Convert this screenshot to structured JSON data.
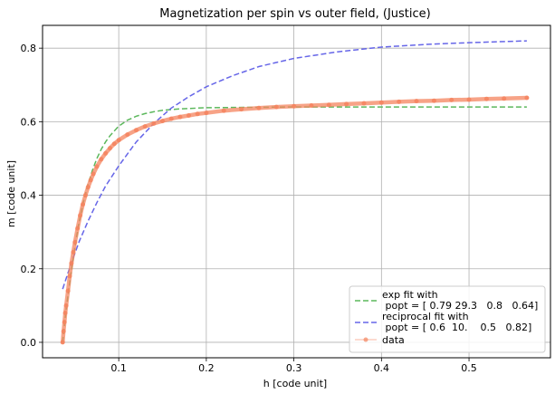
{
  "chart_data": {
    "type": "line",
    "title": "Magnetization per spin vs outer field, (Justice)",
    "xlabel": "h [code unit]",
    "ylabel": "m [code unit]",
    "xlim": [
      0.013,
      0.593
    ],
    "ylim": [
      -0.042,
      0.862
    ],
    "xticks": [
      0.1,
      0.2,
      0.3,
      0.4,
      0.5
    ],
    "xtick_labels": [
      "0.1",
      "0.2",
      "0.3",
      "0.4",
      "0.5"
    ],
    "yticks": [
      0.0,
      0.2,
      0.4,
      0.6,
      0.8
    ],
    "ytick_labels": [
      "0.0",
      "0.2",
      "0.4",
      "0.6",
      "0.8"
    ],
    "grid": true,
    "legend_position": "lower-right",
    "series": [
      {
        "name": "exp fit with\n popt = [ 0.79 29.3   0.8   0.64]",
        "style": "dashed",
        "color": "#5cb85c",
        "x": [
          0.036,
          0.04,
          0.045,
          0.05,
          0.055,
          0.06,
          0.065,
          0.07,
          0.075,
          0.08,
          0.085,
          0.09,
          0.1,
          0.11,
          0.12,
          0.13,
          0.14,
          0.15,
          0.17,
          0.2,
          0.25,
          0.3,
          0.4,
          0.5,
          0.566
        ],
        "y": [
          0.0,
          0.09,
          0.18,
          0.26,
          0.33,
          0.385,
          0.43,
          0.468,
          0.5,
          0.525,
          0.545,
          0.562,
          0.588,
          0.604,
          0.615,
          0.622,
          0.627,
          0.631,
          0.635,
          0.638,
          0.639,
          0.64,
          0.64,
          0.64,
          0.64
        ]
      },
      {
        "name": "reciprocal fit with\n popt = [ 0.6  10.    0.5   0.82]",
        "style": "dashed",
        "color": "#6666e8",
        "x": [
          0.036,
          0.045,
          0.055,
          0.065,
          0.075,
          0.085,
          0.1,
          0.12,
          0.14,
          0.16,
          0.18,
          0.2,
          0.23,
          0.26,
          0.3,
          0.35,
          0.4,
          0.45,
          0.5,
          0.566
        ],
        "y": [
          0.145,
          0.21,
          0.275,
          0.33,
          0.38,
          0.425,
          0.48,
          0.545,
          0.595,
          0.637,
          0.668,
          0.695,
          0.725,
          0.75,
          0.772,
          0.79,
          0.803,
          0.81,
          0.815,
          0.82
        ]
      },
      {
        "name": "data",
        "style": "markers",
        "color": "#f4845f",
        "x": [
          0.036,
          0.037,
          0.038,
          0.039,
          0.04,
          0.042,
          0.044,
          0.046,
          0.048,
          0.05,
          0.053,
          0.056,
          0.059,
          0.062,
          0.065,
          0.068,
          0.071,
          0.075,
          0.08,
          0.085,
          0.09,
          0.095,
          0.1,
          0.11,
          0.12,
          0.13,
          0.14,
          0.15,
          0.16,
          0.17,
          0.18,
          0.19,
          0.2,
          0.22,
          0.24,
          0.26,
          0.28,
          0.3,
          0.32,
          0.34,
          0.36,
          0.38,
          0.4,
          0.42,
          0.44,
          0.46,
          0.48,
          0.5,
          0.52,
          0.54,
          0.566
        ],
        "y": [
          0.0,
          0.03,
          0.055,
          0.08,
          0.1,
          0.14,
          0.18,
          0.215,
          0.245,
          0.272,
          0.31,
          0.345,
          0.375,
          0.4,
          0.422,
          0.441,
          0.458,
          0.478,
          0.498,
          0.514,
          0.528,
          0.54,
          0.55,
          0.565,
          0.577,
          0.587,
          0.595,
          0.602,
          0.608,
          0.613,
          0.617,
          0.621,
          0.624,
          0.63,
          0.634,
          0.637,
          0.64,
          0.642,
          0.644,
          0.646,
          0.648,
          0.65,
          0.652,
          0.654,
          0.656,
          0.657,
          0.659,
          0.66,
          0.662,
          0.663,
          0.665
        ]
      }
    ]
  }
}
